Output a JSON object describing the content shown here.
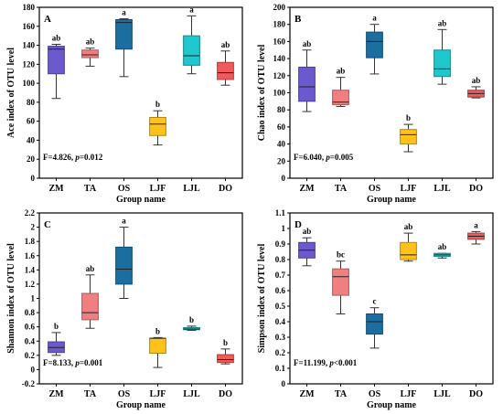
{
  "chart_data": [
    {
      "type": "box",
      "panel_label": "A",
      "ylabel": "Ace index of OTU level",
      "xlabel": "Group name",
      "categories": [
        "ZM",
        "TA",
        "OS",
        "LJF",
        "LJL",
        "DO"
      ],
      "ylim": [
        0,
        180
      ],
      "yticks": [
        0,
        20,
        40,
        60,
        80,
        100,
        120,
        140,
        160,
        180
      ],
      "boxes": [
        {
          "min": 84,
          "q1": 110,
          "median": 136,
          "q3": 139,
          "max": 141,
          "color": "#6a5acd",
          "letter": "ab"
        },
        {
          "min": 118,
          "q1": 127,
          "median": 130,
          "q3": 135,
          "max": 137,
          "color": "#f08080",
          "letter": "ab"
        },
        {
          "min": 107,
          "q1": 136,
          "median": 164,
          "q3": 167,
          "max": 168,
          "color": "#1a6ea0",
          "letter": "a"
        },
        {
          "min": 35,
          "q1": 45,
          "median": 57,
          "q3": 64,
          "max": 71,
          "color": "#ffc21a",
          "letter": "b"
        },
        {
          "min": 110,
          "q1": 119,
          "median": 129,
          "q3": 150,
          "max": 171,
          "color": "#1ec8cc",
          "letter": "a"
        },
        {
          "min": 98,
          "q1": 104,
          "median": 111,
          "q3": 122,
          "max": 134,
          "color": "#f05a5a",
          "letter": "ab"
        }
      ],
      "stat_prefix": "F=4.826, ",
      "stat_p": "p",
      "stat_suffix": "=0.012"
    },
    {
      "type": "box",
      "panel_label": "B",
      "ylabel": "Chao index of OTU level",
      "xlabel": "Group name",
      "categories": [
        "ZM",
        "TA",
        "OS",
        "LJF",
        "LJL",
        "DO"
      ],
      "ylim": [
        0,
        200
      ],
      "yticks": [
        0,
        20,
        40,
        60,
        80,
        100,
        120,
        140,
        160,
        180,
        200
      ],
      "boxes": [
        {
          "min": 78,
          "q1": 90,
          "median": 107,
          "q3": 130,
          "max": 150,
          "color": "#6a5acd",
          "letter": "ab"
        },
        {
          "min": 84,
          "q1": 86,
          "median": 89,
          "q3": 103,
          "max": 118,
          "color": "#f08080",
          "letter": "ab"
        },
        {
          "min": 122,
          "q1": 141,
          "median": 160,
          "q3": 171,
          "max": 180,
          "color": "#1a6ea0",
          "letter": "a"
        },
        {
          "min": 31,
          "q1": 40,
          "median": 51,
          "q3": 57,
          "max": 63,
          "color": "#ffc21a",
          "letter": "b"
        },
        {
          "min": 110,
          "q1": 119,
          "median": 128,
          "q3": 150,
          "max": 174,
          "color": "#1ec8cc",
          "letter": "ab"
        },
        {
          "min": 94,
          "q1": 95,
          "median": 99,
          "q3": 103,
          "max": 107,
          "color": "#f05a5a",
          "letter": "ab"
        }
      ],
      "stat_prefix": "F=6.040, ",
      "stat_p": "p",
      "stat_suffix": "=0.005"
    },
    {
      "type": "box",
      "panel_label": "C",
      "ylabel": "Shannon index of OTU level",
      "xlabel": "Group name",
      "categories": [
        "ZM",
        "TA",
        "OS",
        "LJF",
        "LJL",
        "DO"
      ],
      "ylim": [
        -0.2,
        2.2
      ],
      "yticks": [
        -0.2,
        0,
        0.2,
        0.4,
        0.6,
        0.8,
        1,
        1.2,
        1.4,
        1.6,
        1.8,
        2,
        2.2
      ],
      "ytick_labels": [
        "-0.2",
        "0",
        "0.2",
        "0.4",
        "0.6",
        "0.8",
        "1",
        "1.2",
        "1.4",
        "1.6",
        "1.8",
        "2",
        "2.2"
      ],
      "boxes": [
        {
          "min": 0.2,
          "q1": 0.24,
          "median": 0.31,
          "q3": 0.39,
          "max": 0.52,
          "color": "#6a5acd",
          "letter": "b"
        },
        {
          "min": 0.58,
          "q1": 0.7,
          "median": 0.8,
          "q3": 1.07,
          "max": 1.33,
          "color": "#f08080",
          "letter": "ab"
        },
        {
          "min": 1.0,
          "q1": 1.2,
          "median": 1.41,
          "q3": 1.72,
          "max": 2.0,
          "color": "#1a6ea0",
          "letter": "a"
        },
        {
          "min": 0.03,
          "q1": 0.23,
          "median": 0.44,
          "q3": 0.44,
          "max": 0.45,
          "color": "#ffc21a",
          "letter": "b"
        },
        {
          "min": 0.55,
          "q1": 0.56,
          "median": 0.57,
          "q3": 0.59,
          "max": 0.61,
          "color": "#1ec8cc",
          "letter": "b"
        },
        {
          "min": 0.08,
          "q1": 0.1,
          "median": 0.14,
          "q3": 0.21,
          "max": 0.29,
          "color": "#f05a5a",
          "letter": "b"
        }
      ],
      "stat_prefix": "F=8.133, ",
      "stat_p": "p",
      "stat_suffix": "=0.001"
    },
    {
      "type": "box",
      "panel_label": "D",
      "ylabel": "Simpson index of OTU level",
      "xlabel": "Group name",
      "categories": [
        "ZM",
        "TA",
        "OS",
        "LJF",
        "LJL",
        "DO"
      ],
      "ylim": [
        0,
        1.1
      ],
      "yticks": [
        0,
        0.1,
        0.2,
        0.3,
        0.4,
        0.5,
        0.6,
        0.7,
        0.8,
        0.9,
        1,
        1.1
      ],
      "ytick_labels": [
        "0",
        "0.1",
        "0.2",
        "0.3",
        "0.4",
        "0.5",
        "0.6",
        "0.7",
        "0.8",
        "0.9",
        "1",
        "1.1"
      ],
      "boxes": [
        {
          "min": 0.76,
          "q1": 0.81,
          "median": 0.86,
          "q3": 0.91,
          "max": 0.94,
          "color": "#6a5acd",
          "letter": "ab"
        },
        {
          "min": 0.45,
          "q1": 0.57,
          "median": 0.69,
          "q3": 0.74,
          "max": 0.79,
          "color": "#f08080",
          "letter": "bc"
        },
        {
          "min": 0.23,
          "q1": 0.32,
          "median": 0.4,
          "q3": 0.45,
          "max": 0.49,
          "color": "#1a6ea0",
          "letter": "c"
        },
        {
          "min": 0.79,
          "q1": 0.8,
          "median": 0.83,
          "q3": 0.91,
          "max": 0.97,
          "color": "#ffc21a",
          "letter": "ab"
        },
        {
          "min": 0.81,
          "q1": 0.82,
          "median": 0.83,
          "q3": 0.84,
          "max": 0.84,
          "color": "#1ec8cc",
          "letter": "ab"
        },
        {
          "min": 0.9,
          "q1": 0.93,
          "median": 0.95,
          "q3": 0.97,
          "max": 0.98,
          "color": "#f05a5a",
          "letter": "a"
        }
      ],
      "stat_prefix": "F=11.199, ",
      "stat_p": "p",
      "stat_suffix": "<0.001"
    }
  ]
}
